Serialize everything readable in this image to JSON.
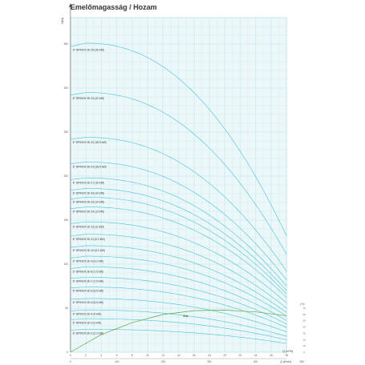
{
  "chart_data": {
    "type": "line",
    "title": "Emelőmagasság / Hozam",
    "ylabel": "H(m)",
    "ylim": [
      0,
      380
    ],
    "y_ticks": [
      0,
      50,
      100,
      150,
      200,
      250,
      300,
      350
    ],
    "x_ticks_top": [
      "0",
      "2",
      "4",
      "6",
      "8",
      "10",
      "12",
      "14",
      "16",
      "18",
      "20",
      "22",
      "24",
      "26",
      "28"
    ],
    "xlabel_top": "Q (m³/h)",
    "xlim_top": [
      0,
      28
    ],
    "x_ticks_bottom": [
      "0",
      "100",
      "200",
      "300",
      "400",
      "500"
    ],
    "xlabel_bottom": "Q (l/min)",
    "eta_label": "Eta",
    "eta_unit": "(%)",
    "eta_ticks": [
      "0",
      "10",
      "20",
      "30",
      "40",
      "50",
      "60",
      "70"
    ],
    "eta_ylim": [
      0,
      70
    ],
    "colors": {
      "curves": "#45c3d6",
      "eta": "#5aa83c",
      "grid": "#bfe3ea",
      "background": "#ecf7fa"
    },
    "series": [
      {
        "name": "6\" SPINOX 30-25 (26 kW)",
        "h0": 347,
        "hpk": 351,
        "hend": 132
      },
      {
        "name": "6\" SPINOX 30-23 (22 kW)",
        "h0": 292,
        "hpk": 295,
        "hend": 111
      },
      {
        "name": "6\" SPINOX 30-21 (18,5 kW)",
        "h0": 242,
        "hpk": 244,
        "hend": 92
      },
      {
        "name": "6\" SPINOX 30-19 (18,5 kW)",
        "h0": 214,
        "hpk": 216,
        "hend": 82
      },
      {
        "name": "6\" SPINOX 30-17 (15 kW)",
        "h0": 196,
        "hpk": 198,
        "hend": 75
      },
      {
        "name": "6\" SPINOX 30-16 (13 kW)",
        "h0": 184,
        "hpk": 186,
        "hend": 70
      },
      {
        "name": "6\" SPINOX 30-15 (14 kW)",
        "h0": 174,
        "hpk": 176,
        "hend": 66
      },
      {
        "name": "6\" SPINOX 30-14 (13 kW)",
        "h0": 163,
        "hpk": 165,
        "hend": 62
      },
      {
        "name": "6\" SPINOX 30-13 (11 kW)",
        "h0": 146,
        "hpk": 148,
        "hend": 56
      },
      {
        "name": "6\" SPINOX 30-11 (9,2 kW)",
        "h0": 132,
        "hpk": 134,
        "hend": 50
      },
      {
        "name": "6\" SPINOX 30-10 (9,2 kW)",
        "h0": 119,
        "hpk": 121,
        "hend": 45
      },
      {
        "name": "6\" SPINOX 30-9 (9,2 kW)",
        "h0": 107,
        "hpk": 109,
        "hend": 41
      },
      {
        "name": "6\" SPINOX 30-8 (7,5 kW)",
        "h0": 95,
        "hpk": 97,
        "hend": 36
      },
      {
        "name": "6\" SPINOX 30-7 (7,5 kW)",
        "h0": 84,
        "hpk": 85,
        "hend": 32
      },
      {
        "name": "6\" SPINOX 30-6 (5,5 kW)",
        "h0": 73,
        "hpk": 74,
        "hend": 28
      },
      {
        "name": "6\" SPINOX 30-5 (5,5 kW)",
        "h0": 60,
        "hpk": 61,
        "hend": 23
      },
      {
        "name": "6\" SPINOX 30-4 (4 kW)",
        "h0": 47,
        "hpk": 48,
        "hend": 18
      },
      {
        "name": "6\" SPINOX 30-3 (3 kW)",
        "h0": 37,
        "hpk": 38,
        "hend": 14
      },
      {
        "name": "6\" SPINOX 30-2 (2,2 kW)",
        "h0": 25,
        "hpk": 26,
        "hend": 10
      }
    ],
    "eta_curve": {
      "q": [
        0,
        4,
        8,
        12,
        16,
        20,
        24,
        28
      ],
      "eta": [
        0,
        28,
        47,
        60,
        66,
        67,
        64,
        58
      ]
    }
  }
}
